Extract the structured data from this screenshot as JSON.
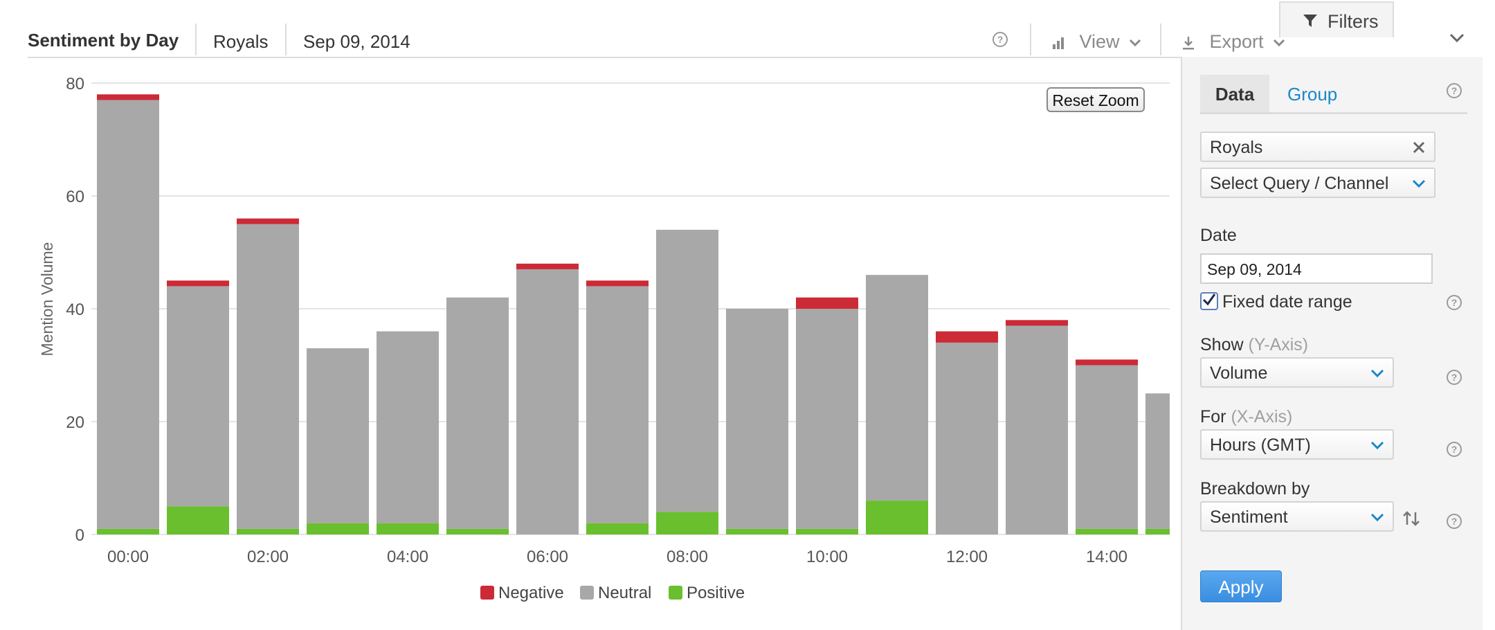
{
  "header": {
    "title": "Sentiment by Day",
    "query": "Royals",
    "date": "Sep 09, 2014",
    "help_icon": "?",
    "view_label": "View",
    "export_label": "Export",
    "filters_label": "Filters"
  },
  "chart": {
    "reset_zoom_label": "Reset Zoom"
  },
  "chart_data": {
    "type": "bar",
    "stacked": true,
    "x": [
      "00:00",
      "01:00",
      "02:00",
      "03:00",
      "04:00",
      "05:00",
      "06:00",
      "07:00",
      "08:00",
      "09:00",
      "10:00",
      "11:00",
      "12:00",
      "13:00",
      "14:00",
      "15:00"
    ],
    "x_tick_labels": [
      "00:00",
      "02:00",
      "04:00",
      "06:00",
      "08:00",
      "10:00",
      "12:00",
      "14:00"
    ],
    "series": [
      {
        "name": "Positive",
        "color": "#6abf2e",
        "values": [
          1,
          5,
          1,
          2,
          2,
          1,
          0,
          2,
          4,
          1,
          1,
          6,
          0,
          0,
          1,
          1
        ]
      },
      {
        "name": "Neutral",
        "color": "#a8a8a8",
        "values": [
          76,
          39,
          54,
          31,
          34,
          41,
          47,
          42,
          50,
          39,
          39,
          40,
          34,
          37,
          29,
          24
        ]
      },
      {
        "name": "Negative",
        "color": "#cc2a36",
        "values": [
          1,
          1,
          1,
          0,
          0,
          0,
          1,
          1,
          0,
          0,
          2,
          0,
          2,
          1,
          1,
          0
        ]
      }
    ],
    "ylabel": "Mention Volume",
    "y_ticks": [
      0,
      20,
      40,
      60,
      80
    ],
    "ylim": [
      0,
      80
    ],
    "legend_position": "bottom-center",
    "grid": true
  },
  "panel": {
    "tabs": [
      {
        "label": "Data",
        "active": true
      },
      {
        "label": "Group",
        "active": false
      }
    ],
    "query_tag": "Royals",
    "query_select_placeholder": "Select Query / Channel",
    "date_label": "Date",
    "date_value": "Sep 09, 2014",
    "fixed_date_label": "Fixed date range",
    "fixed_date_checked": true,
    "show_label": "Show",
    "show_axis_hint": "(Y-Axis)",
    "show_value": "Volume",
    "for_label": "For",
    "for_axis_hint": "(X-Axis)",
    "for_value": "Hours (GMT)",
    "breakdown_label": "Breakdown by",
    "breakdown_value": "Sentiment",
    "apply_label": "Apply",
    "accent_color": "#1a87c9"
  }
}
